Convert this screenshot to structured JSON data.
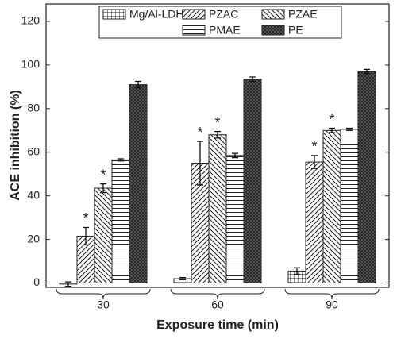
{
  "chart_data": {
    "type": "bar",
    "y_label": "ACE inhibition (%)",
    "x_label": "Exposure time (min)",
    "categories": [
      "30",
      "60",
      "90"
    ],
    "series": [
      {
        "name": "Mg/Al-LDH",
        "color": "#222222",
        "pattern": "grid",
        "values": [
          -0.5,
          2,
          5.5
        ],
        "errors": [
          1,
          0.5,
          1.5
        ]
      },
      {
        "name": "PZAC",
        "color": "#222222",
        "pattern": "diag-up",
        "values": [
          21.5,
          55,
          55.5
        ],
        "errors": [
          4,
          10,
          3
        ]
      },
      {
        "name": "PZAE",
        "color": "#222222",
        "pattern": "diag-down",
        "values": [
          43.5,
          68,
          70
        ],
        "errors": [
          2,
          1.5,
          1
        ]
      },
      {
        "name": "PMAE",
        "color": "#222222",
        "pattern": "horizontal",
        "values": [
          56.5,
          58.5,
          70.5
        ],
        "errors": [
          0.5,
          1,
          0.5
        ]
      },
      {
        "name": "PE",
        "color": "#222222",
        "pattern": "crosshatch",
        "values": [
          91,
          93.5,
          97
        ],
        "errors": [
          1.5,
          1,
          1
        ]
      }
    ],
    "annotations": [
      {
        "text": "*",
        "series": 1,
        "category": 0
      },
      {
        "text": "*",
        "series": 2,
        "category": 0
      },
      {
        "text": "*",
        "series": 1,
        "category": 1
      },
      {
        "text": "*",
        "series": 2,
        "category": 1
      },
      {
        "text": "*",
        "series": 1,
        "category": 2
      },
      {
        "text": "*",
        "series": 2,
        "category": 2
      }
    ],
    "ylim": [
      -2,
      128
    ],
    "yticks": [
      0,
      20,
      40,
      60,
      80,
      100,
      120
    ],
    "grid": false
  }
}
